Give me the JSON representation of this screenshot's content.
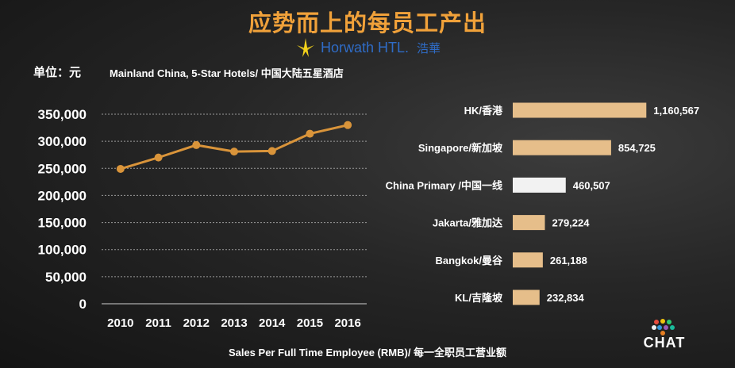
{
  "title": "应势而上的每员工产出",
  "logo": {
    "name": "Horwath HTL.",
    "cn": "浩華"
  },
  "unit_label": "单位：元",
  "footer": "Sales Per Full Time Employee (RMB)/ 每一全职员工营业额",
  "chat_logo": "CHAT",
  "colors": {
    "title": "#F0A13A",
    "line": "#D9943A",
    "bar": "#E6BE8A",
    "highlight_bar": "#F2F2F2",
    "grid": "#9A9A9A"
  },
  "chart_data": [
    {
      "type": "line",
      "title": "Mainland China, 5-Star Hotels/ 中国大陆五星酒店",
      "x": [
        "2010",
        "2011",
        "2012",
        "2013",
        "2014",
        "2015",
        "2016"
      ],
      "y": [
        249000,
        270000,
        293000,
        281000,
        282000,
        314000,
        330000
      ],
      "y_ticks": [
        "0",
        "50,000",
        "100,000",
        "150,000",
        "200,000",
        "250,000",
        "300,000",
        "350,000"
      ],
      "ylim": [
        0,
        350000
      ],
      "grid": true,
      "xlabel": "",
      "ylabel": ""
    },
    {
      "type": "bar",
      "orientation": "horizontal",
      "categories": [
        "HK/香港",
        "Singapore/新加坡",
        "China Primary /中国一线",
        "Jakarta/雅加达",
        "Bangkok/曼谷",
        "KL/吉隆坡"
      ],
      "values": [
        1160567,
        854725,
        460507,
        279224,
        261188,
        232834
      ],
      "value_labels": [
        "1,160,567",
        "854,725",
        "460,507",
        "279,224",
        "261,188",
        "232,834"
      ],
      "highlight_index": 2,
      "xlim": [
        0,
        1200000
      ]
    }
  ]
}
